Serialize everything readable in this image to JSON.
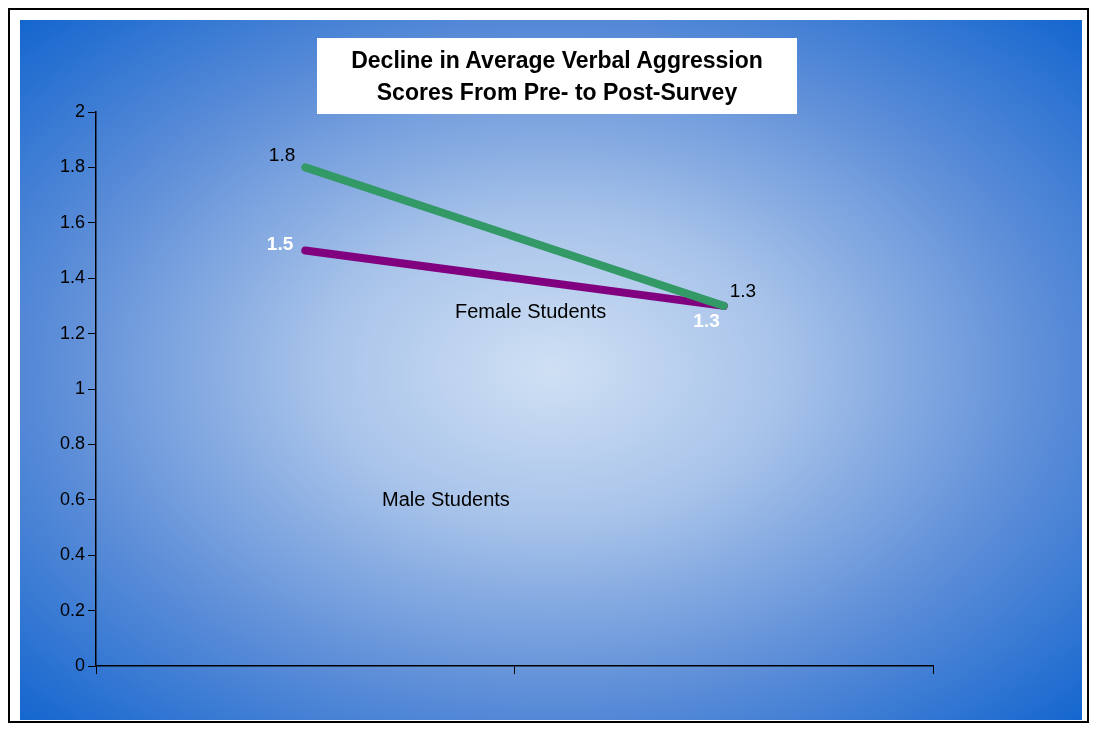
{
  "chart_data": {
    "type": "line",
    "title": "Decline in Average Verbal Aggression\nScores From Pre- to Post-Survey",
    "categories": [
      null,
      null
    ],
    "series": [
      {
        "color": "#339966",
        "values": [
          1.8,
          1.3
        ]
      },
      {
        "color": "#800080",
        "values": [
          1.5,
          1.3
        ]
      }
    ],
    "ylim": [
      0,
      2
    ],
    "yticks": [
      0,
      0.2,
      0.4,
      0.6,
      0.8,
      1,
      1.2,
      1.4,
      1.6,
      1.8,
      2
    ],
    "grid": false,
    "legend": false,
    "marker": "none",
    "line_style": "solid",
    "data_labels": true,
    "annotations": [
      "Female Students",
      "Male Students"
    ]
  }
}
